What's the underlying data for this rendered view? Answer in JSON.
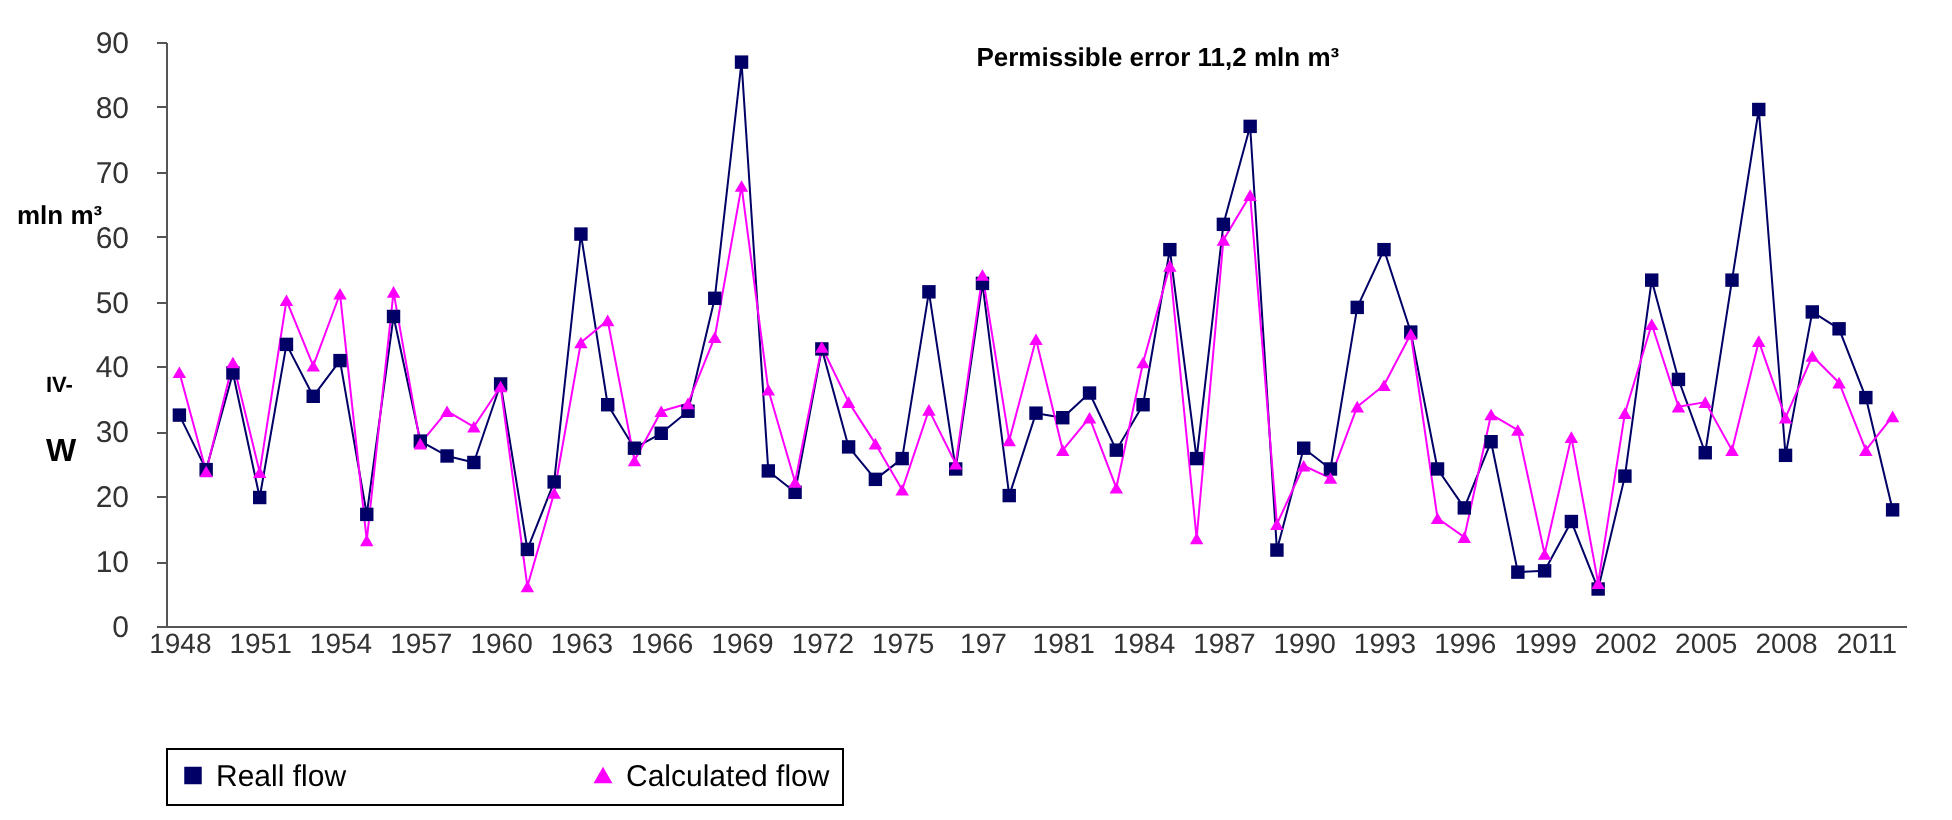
{
  "chart_data": {
    "type": "line",
    "title": "Permissible error 11,2 mln m³",
    "ylabel": "mln m³",
    "annotations": [
      "IV-",
      "W"
    ],
    "categories": [
      "1948",
      null,
      null,
      "1951",
      null,
      null,
      "1954",
      null,
      null,
      "1957",
      null,
      null,
      "1960",
      null,
      null,
      "1963",
      null,
      null,
      "1966",
      null,
      null,
      "1969",
      null,
      null,
      "1972",
      null,
      null,
      "1975",
      null,
      null,
      "197",
      null,
      null,
      "1981",
      null,
      null,
      "1984",
      null,
      null,
      "1987",
      null,
      null,
      "1990",
      null,
      null,
      "1993",
      null,
      null,
      "1996",
      null,
      null,
      "1999",
      null,
      null,
      "2002",
      null,
      null,
      "2005",
      null,
      null,
      "2008",
      null,
      null,
      "2011",
      null
    ],
    "series": [
      {
        "name": "Reall flow",
        "color": "#000066",
        "marker": "square",
        "values": [
          32.5,
          24.1,
          39,
          19.8,
          43.4,
          35.4,
          40.9,
          17.2,
          47.7,
          28.5,
          26.2,
          25.2,
          37.3,
          11.8,
          22.2,
          60.4,
          34.1,
          27.4,
          29.7,
          33.1,
          50.5,
          86.9,
          23.9,
          20.6,
          42.7,
          27.6,
          22.6,
          25.8,
          51.5,
          24.2,
          52.8,
          20.1,
          32.8,
          32.1,
          35.9,
          27.1,
          34.1,
          58.0,
          25.8,
          61.9,
          77.0,
          11.7,
          27.4,
          24.2,
          49.1,
          58.0,
          45.3,
          24.2,
          18.2,
          28.4,
          8.3,
          8.5,
          16.1,
          5.7,
          23.1,
          53.3,
          38.0,
          26.7,
          53.3,
          79.6,
          26.3,
          48.4,
          45.8,
          35.2,
          17.9
        ]
      },
      {
        "name": "Calculated flow",
        "color": "#ff00ff",
        "marker": "triangle",
        "values": [
          39.1,
          23.8,
          40.6,
          23.7,
          50.2,
          40.1,
          51.2,
          13.2,
          51.5,
          28.1,
          33.1,
          30.7,
          36.9,
          6.1,
          20.5,
          43.7,
          47.1,
          25.5,
          33.1,
          34.3,
          44.5,
          67.8,
          36.4,
          22.2,
          43.0,
          34.5,
          28.1,
          21.0,
          33.3,
          25.0,
          54.1,
          28.6,
          44.2,
          27.1,
          32.1,
          21.3,
          40.6,
          55.5,
          13.5,
          59.5,
          66.4,
          15.7,
          24.7,
          22.8,
          33.8,
          37.1,
          45.0,
          16.6,
          13.7,
          32.6,
          30.2,
          11.1,
          29.1,
          6.6,
          32.8,
          46.5,
          33.8,
          34.5,
          27.1,
          43.9,
          32.1,
          41.6,
          37.5,
          27.1,
          32.3
        ]
      }
    ],
    "ylim": [
      0,
      90
    ],
    "yticks": [
      0,
      10,
      20,
      30,
      40,
      50,
      60,
      70,
      80,
      90
    ],
    "grid": false,
    "legend": "bottom",
    "line_style": "solid"
  }
}
